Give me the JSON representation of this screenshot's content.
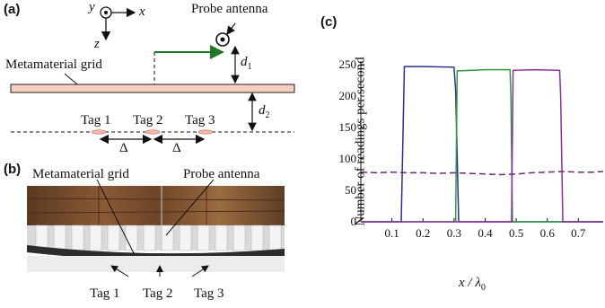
{
  "figure": {
    "panel_a": {
      "label": "(a)",
      "axis_y": "y",
      "axis_x": "x",
      "axis_z": "z",
      "probe_label": "Probe antenna",
      "grid_label": "Metamaterial grid",
      "d1": "d",
      "d1_sub": "1",
      "d2": "d",
      "d2_sub": "2",
      "tags": [
        "Tag 1",
        "Tag 2",
        "Tag 3"
      ],
      "delta": "Δ"
    },
    "panel_b": {
      "label": "(b)",
      "grid_label": "Metamaterial grid",
      "probe_label": "Probe antenna",
      "tags": [
        "Tag 1",
        "Tag 2",
        "Tag 3"
      ]
    },
    "panel_c": {
      "label": "(c)",
      "ylabel": "Number of readings per second",
      "xlabel_main": "x / λ",
      "xlabel_sub": "0"
    },
    "colors": {
      "blue": "#2a2f8f",
      "green": "#2e9a3e",
      "purple": "#8b2f9c",
      "dashed": "#6a2a6e",
      "arrow_green": "#1e7a2a",
      "grid_fill": "#f6cfc2"
    }
  },
  "chart_data": {
    "type": "line",
    "title": "",
    "xlabel": "x / λ0",
    "ylabel": "Number of readings per second",
    "xlim": [
      0,
      0.78
    ],
    "ylim": [
      0,
      250
    ],
    "xticks": [
      0.1,
      0.2,
      0.3,
      0.4,
      0.5,
      0.6,
      0.7
    ],
    "yticks": [
      0,
      50,
      100,
      150,
      200,
      250
    ],
    "grid": false,
    "legend": "none",
    "series": [
      {
        "color": "#2a2f8f",
        "style": "solid",
        "x": [
          0,
          0.13,
          0.14,
          0.2,
          0.3,
          0.305,
          0.315,
          0.78
        ],
        "y": [
          0,
          0,
          247,
          247,
          246,
          210,
          0,
          0
        ]
      },
      {
        "color": "#2e9a3e",
        "style": "solid",
        "x": [
          0,
          0.305,
          0.31,
          0.4,
          0.48,
          0.483,
          0.488,
          0.78
        ],
        "y": [
          0,
          0,
          240,
          242,
          242,
          200,
          0,
          0
        ]
      },
      {
        "color": "#8b2f9c",
        "style": "solid",
        "x": [
          0,
          0.485,
          0.49,
          0.56,
          0.64,
          0.643,
          0.65,
          0.78
        ],
        "y": [
          0,
          0,
          241,
          242,
          241,
          200,
          0,
          0
        ]
      },
      {
        "color": "#6a2a6e",
        "style": "dashed",
        "x": [
          0,
          0.05,
          0.1,
          0.15,
          0.2,
          0.25,
          0.3,
          0.35,
          0.4,
          0.45,
          0.5,
          0.55,
          0.6,
          0.65,
          0.7,
          0.75,
          0.78
        ],
        "y": [
          79,
          78,
          79,
          78,
          78,
          77,
          78,
          77,
          76,
          75,
          76,
          78,
          79,
          80,
          79,
          79,
          80
        ]
      }
    ]
  }
}
